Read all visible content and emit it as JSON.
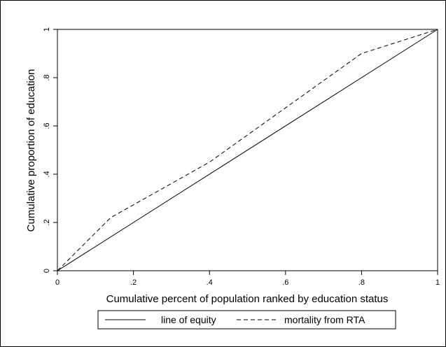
{
  "chart_data": {
    "type": "line",
    "title": "",
    "xlabel": "Cumulative percent of population ranked by education status",
    "ylabel": "Cumulative proportion of education",
    "xlim": [
      0,
      1
    ],
    "ylim": [
      0,
      1
    ],
    "xticks": [
      0,
      0.2,
      0.4,
      0.6,
      0.8,
      1
    ],
    "xtick_labels": [
      "0",
      ".2",
      ".4",
      ".6",
      ".8",
      "1"
    ],
    "yticks": [
      0,
      0.2,
      0.4,
      0.6,
      0.8,
      1
    ],
    "ytick_labels": [
      "0",
      ".2",
      ".4",
      ".6",
      ".8",
      "1"
    ],
    "grid": false,
    "legend_position": "bottom",
    "series": [
      {
        "name": "line of equity",
        "style": "solid",
        "color": "#000000",
        "x": [
          0,
          1
        ],
        "y": [
          0,
          1
        ]
      },
      {
        "name": "mortality from RTA",
        "style": "dashed",
        "color": "#000000",
        "x": [
          0,
          0.14,
          0.4,
          0.8,
          1
        ],
        "y": [
          0,
          0.22,
          0.45,
          0.9,
          1
        ]
      }
    ]
  }
}
